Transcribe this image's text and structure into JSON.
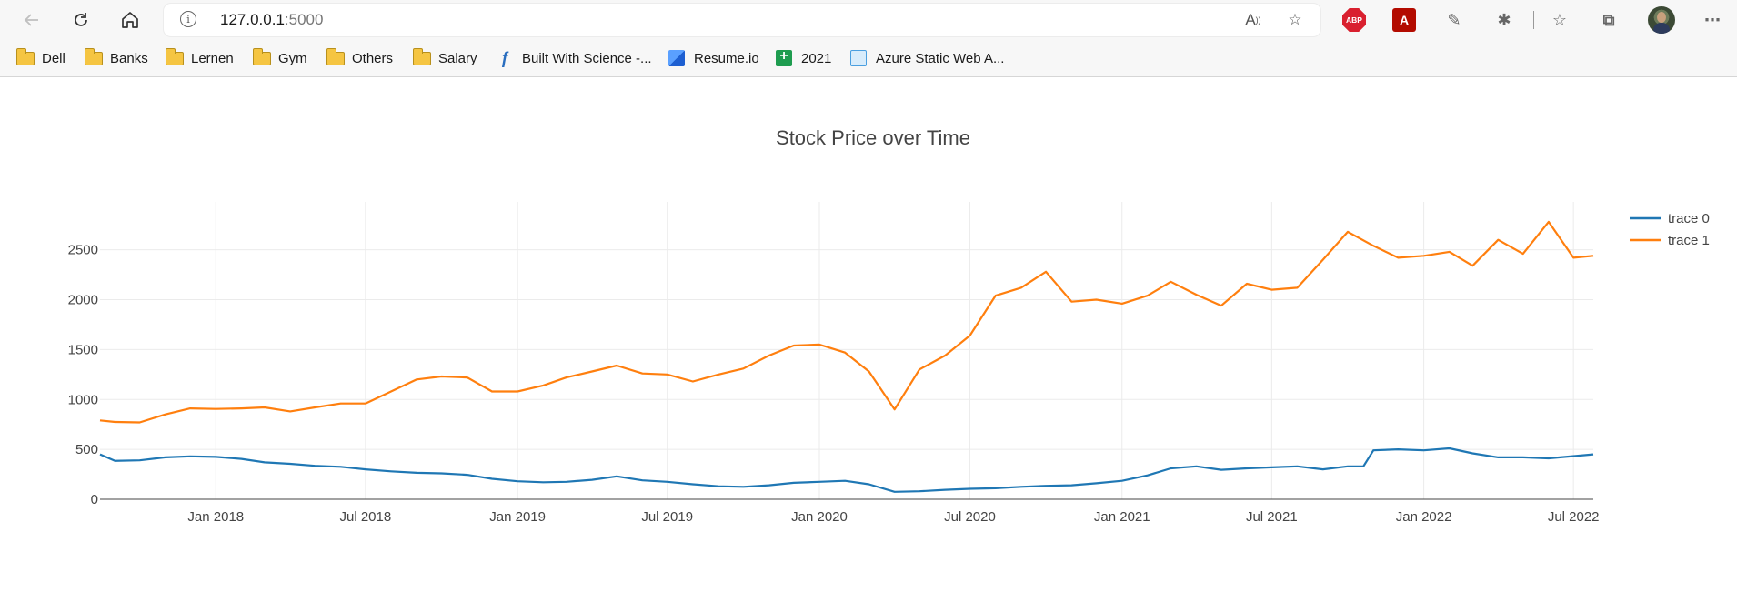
{
  "browser": {
    "address": {
      "host": "127.0.0.1",
      "port": ":5000"
    },
    "nav_icons": [
      "back-arrow-icon",
      "refresh-icon",
      "home-icon"
    ],
    "extensions": {
      "abp_label": "ABP",
      "pdf_label": "A"
    }
  },
  "bookmarks": [
    {
      "label": "Dell",
      "icon": "folder-icon"
    },
    {
      "label": "Banks",
      "icon": "folder-icon"
    },
    {
      "label": "Lernen",
      "icon": "folder-icon"
    },
    {
      "label": "Gym",
      "icon": "folder-icon"
    },
    {
      "label": "Others",
      "icon": "folder-icon"
    },
    {
      "label": "Salary",
      "icon": "folder-icon"
    },
    {
      "label": "Built With Science -...",
      "icon": "bws-icon"
    },
    {
      "label": "Resume.io",
      "icon": "resume-icon"
    },
    {
      "label": "2021",
      "icon": "sheets-icon"
    },
    {
      "label": "Azure Static Web A...",
      "icon": "azure-icon"
    }
  ],
  "chart_data": {
    "type": "line",
    "title": "Stock Price over Time",
    "xlabel": "",
    "ylabel": "",
    "x_range": [
      "2017-08-14",
      "2022-07-25"
    ],
    "ylim": [
      0,
      2980
    ],
    "x_ticks": [
      {
        "date": "2018-01-01",
        "label": "Jan 2018"
      },
      {
        "date": "2018-07-01",
        "label": "Jul 2018"
      },
      {
        "date": "2019-01-01",
        "label": "Jan 2019"
      },
      {
        "date": "2019-07-01",
        "label": "Jul 2019"
      },
      {
        "date": "2020-01-01",
        "label": "Jan 2020"
      },
      {
        "date": "2020-07-01",
        "label": "Jul 2020"
      },
      {
        "date": "2021-01-01",
        "label": "Jan 2021"
      },
      {
        "date": "2021-07-01",
        "label": "Jul 2021"
      },
      {
        "date": "2022-01-01",
        "label": "Jan 2022"
      },
      {
        "date": "2022-07-01",
        "label": "Jul 2022"
      }
    ],
    "y_ticks": [
      0,
      500,
      1000,
      1500,
      2000,
      2500
    ],
    "grid": true,
    "legend": "top-right",
    "series": [
      {
        "name": "trace 0",
        "color": "#1f77b4",
        "points": [
          [
            "2017-08-14",
            450
          ],
          [
            "2017-09-01",
            385
          ],
          [
            "2017-10-01",
            390
          ],
          [
            "2017-11-01",
            420
          ],
          [
            "2017-12-01",
            430
          ],
          [
            "2018-01-01",
            425
          ],
          [
            "2018-02-01",
            405
          ],
          [
            "2018-03-01",
            370
          ],
          [
            "2018-04-01",
            355
          ],
          [
            "2018-05-01",
            335
          ],
          [
            "2018-06-01",
            325
          ],
          [
            "2018-07-01",
            300
          ],
          [
            "2018-08-01",
            280
          ],
          [
            "2018-09-01",
            265
          ],
          [
            "2018-10-01",
            260
          ],
          [
            "2018-11-01",
            245
          ],
          [
            "2018-12-01",
            205
          ],
          [
            "2019-01-01",
            180
          ],
          [
            "2019-02-01",
            170
          ],
          [
            "2019-03-01",
            175
          ],
          [
            "2019-04-01",
            195
          ],
          [
            "2019-05-01",
            230
          ],
          [
            "2019-06-01",
            190
          ],
          [
            "2019-07-01",
            175
          ],
          [
            "2019-08-01",
            150
          ],
          [
            "2019-09-01",
            130
          ],
          [
            "2019-10-01",
            125
          ],
          [
            "2019-11-01",
            140
          ],
          [
            "2019-12-01",
            165
          ],
          [
            "2020-01-01",
            175
          ],
          [
            "2020-02-01",
            185
          ],
          [
            "2020-03-01",
            150
          ],
          [
            "2020-04-01",
            75
          ],
          [
            "2020-05-01",
            80
          ],
          [
            "2020-06-01",
            95
          ],
          [
            "2020-07-01",
            105
          ],
          [
            "2020-08-01",
            110
          ],
          [
            "2020-09-01",
            125
          ],
          [
            "2020-10-01",
            135
          ],
          [
            "2020-11-01",
            140
          ],
          [
            "2020-12-01",
            160
          ],
          [
            "2021-01-01",
            185
          ],
          [
            "2021-02-01",
            240
          ],
          [
            "2021-03-01",
            310
          ],
          [
            "2021-04-01",
            330
          ],
          [
            "2021-05-01",
            295
          ],
          [
            "2021-06-01",
            310
          ],
          [
            "2021-07-01",
            320
          ],
          [
            "2021-08-01",
            330
          ],
          [
            "2021-09-01",
            300
          ],
          [
            "2021-10-01",
            330
          ],
          [
            "2021-10-20",
            330
          ],
          [
            "2021-11-01",
            490
          ],
          [
            "2021-12-01",
            500
          ],
          [
            "2022-01-01",
            490
          ],
          [
            "2022-02-01",
            510
          ],
          [
            "2022-03-01",
            460
          ],
          [
            "2022-04-01",
            420
          ],
          [
            "2022-05-01",
            420
          ],
          [
            "2022-06-01",
            410
          ],
          [
            "2022-07-25",
            450
          ]
        ]
      },
      {
        "name": "trace 1",
        "color": "#ff7f0e",
        "points": [
          [
            "2017-08-14",
            790
          ],
          [
            "2017-09-01",
            775
          ],
          [
            "2017-10-01",
            770
          ],
          [
            "2017-11-01",
            850
          ],
          [
            "2017-12-01",
            910
          ],
          [
            "2018-01-01",
            905
          ],
          [
            "2018-02-01",
            910
          ],
          [
            "2018-03-01",
            920
          ],
          [
            "2018-04-01",
            880
          ],
          [
            "2018-05-01",
            920
          ],
          [
            "2018-06-01",
            960
          ],
          [
            "2018-07-01",
            960
          ],
          [
            "2018-08-01",
            1080
          ],
          [
            "2018-09-01",
            1200
          ],
          [
            "2018-10-01",
            1230
          ],
          [
            "2018-11-01",
            1220
          ],
          [
            "2018-12-01",
            1080
          ],
          [
            "2019-01-01",
            1080
          ],
          [
            "2019-02-01",
            1140
          ],
          [
            "2019-03-01",
            1220
          ],
          [
            "2019-04-01",
            1280
          ],
          [
            "2019-05-01",
            1340
          ],
          [
            "2019-06-01",
            1260
          ],
          [
            "2019-07-01",
            1250
          ],
          [
            "2019-08-01",
            1180
          ],
          [
            "2019-09-01",
            1250
          ],
          [
            "2019-10-01",
            1310
          ],
          [
            "2019-11-01",
            1440
          ],
          [
            "2019-12-01",
            1540
          ],
          [
            "2020-01-01",
            1550
          ],
          [
            "2020-02-01",
            1470
          ],
          [
            "2020-03-01",
            1280
          ],
          [
            "2020-04-01",
            900
          ],
          [
            "2020-05-01",
            1300
          ],
          [
            "2020-06-01",
            1440
          ],
          [
            "2020-07-01",
            1640
          ],
          [
            "2020-08-01",
            2040
          ],
          [
            "2020-09-01",
            2120
          ],
          [
            "2020-10-01",
            2280
          ],
          [
            "2020-11-01",
            1980
          ],
          [
            "2020-12-01",
            2000
          ],
          [
            "2021-01-01",
            1960
          ],
          [
            "2021-02-01",
            2040
          ],
          [
            "2021-03-01",
            2180
          ],
          [
            "2021-04-01",
            2050
          ],
          [
            "2021-05-01",
            1940
          ],
          [
            "2021-06-01",
            2160
          ],
          [
            "2021-07-01",
            2100
          ],
          [
            "2021-08-01",
            2120
          ],
          [
            "2021-09-01",
            2400
          ],
          [
            "2021-10-01",
            2680
          ],
          [
            "2021-11-01",
            2540
          ],
          [
            "2021-12-01",
            2420
          ],
          [
            "2022-01-01",
            2440
          ],
          [
            "2022-02-01",
            2480
          ],
          [
            "2022-03-01",
            2340
          ],
          [
            "2022-04-01",
            2600
          ],
          [
            "2022-05-01",
            2460
          ],
          [
            "2022-06-01",
            2780
          ],
          [
            "2022-07-01",
            2420
          ],
          [
            "2022-07-25",
            2440
          ]
        ]
      }
    ]
  }
}
